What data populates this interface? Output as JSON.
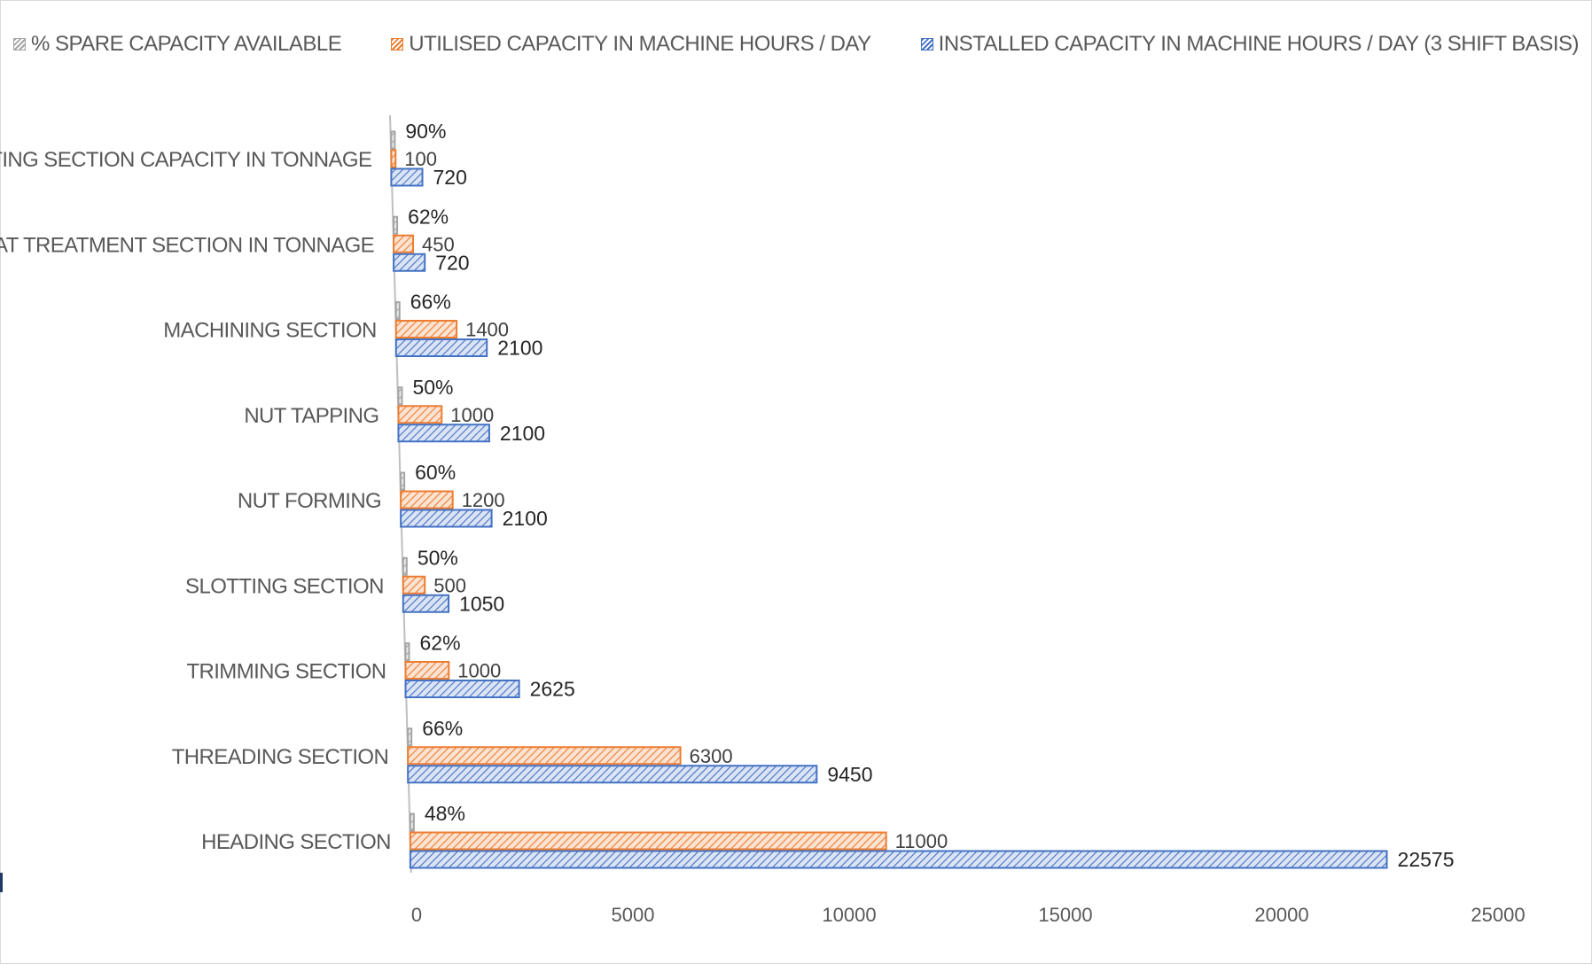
{
  "chart_data": {
    "type": "bar",
    "orientation": "horizontal",
    "categories": [
      "HEADING SECTION",
      "THREADING SECTION",
      "TRIMMING SECTION",
      "SLOTTING SECTION",
      "NUT FORMING",
      "NUT TAPPING",
      "MACHINING SECTION",
      "HEAT TREATMENT SECTION IN TONNAGE",
      "PLATING SECTION CAPACITY IN TONNAGE"
    ],
    "series": [
      {
        "name": "INSTALLED CAPACITY IN MACHINE HOURS / DAY (3 SHIFT BASIS)",
        "color": "#4472c4",
        "values": [
          22575,
          9450,
          2625,
          1050,
          2100,
          2100,
          2100,
          720,
          720
        ],
        "labels": [
          "22575",
          "9450",
          "2625",
          "1050",
          "2100",
          "2100",
          "2100",
          "720",
          "720"
        ]
      },
      {
        "name": "UTILISED CAPACITY IN MACHINE HOURS / DAY",
        "color": "#ed7d31",
        "values": [
          11000,
          6300,
          1000,
          500,
          1200,
          1000,
          1400,
          450,
          100
        ],
        "labels": [
          "11000",
          "6300",
          "1000",
          "500",
          "1200",
          "1000",
          "1400",
          "450",
          "100"
        ]
      },
      {
        "name": "% SPARE CAPACITY AVAILABLE",
        "color": "#a5a5a5",
        "values": [
          48,
          66,
          62,
          50,
          60,
          50,
          66,
          62,
          90
        ],
        "labels": [
          "48%",
          "66%",
          "62%",
          "50%",
          "60%",
          "50%",
          "66%",
          "62%",
          "90%"
        ]
      }
    ],
    "xlim": [
      0,
      25000
    ],
    "xticks": [
      "0",
      "5000",
      "10000",
      "15000",
      "20000",
      "25000"
    ],
    "legend_position": "top",
    "grid": false
  }
}
